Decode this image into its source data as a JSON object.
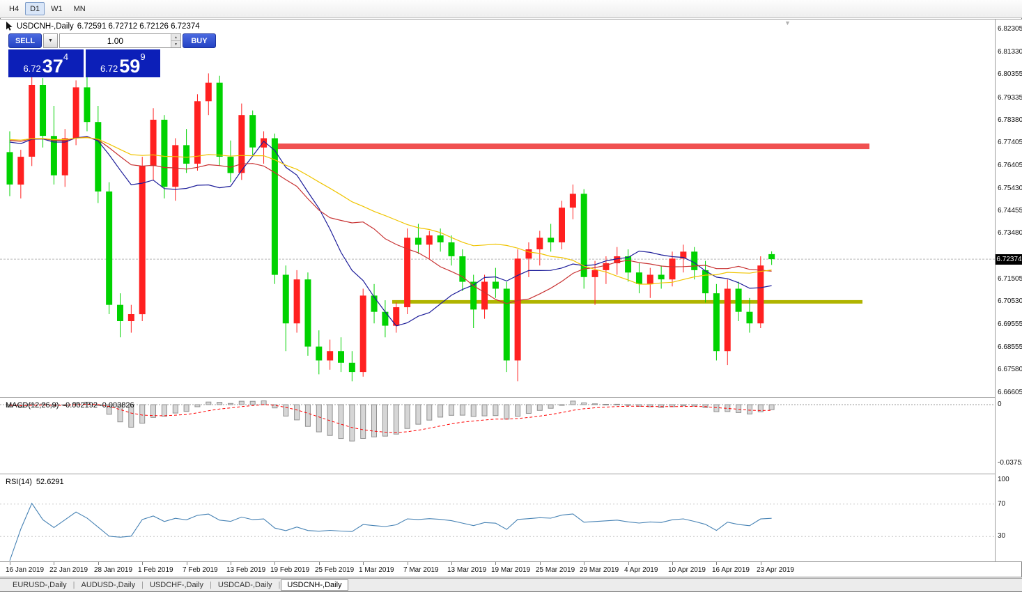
{
  "toolbar": {
    "timeframes": [
      {
        "label": "H4",
        "active": false
      },
      {
        "label": "D1",
        "active": true
      },
      {
        "label": "W1",
        "active": false
      },
      {
        "label": "MN",
        "active": false
      }
    ]
  },
  "chart": {
    "symbol_title": "USDCNH-,Daily",
    "ohlc_text": "6.72591 6.72712 6.72126 6.72374",
    "current_price_label": "6.72374",
    "colors": {
      "bull": "#ff2020",
      "bear": "#00d200",
      "resistance": "#f05050",
      "support": "#b0b400",
      "macd_bar_fill": "#d6d6d6",
      "macd_bar_stroke": "#909090",
      "macd_signal": "#ff0000",
      "rsi": "#4682b4",
      "price_line": "#b8b8b8",
      "badge_bg": "#000000",
      "badge_fg": "#ffffff",
      "button_blue": "#2d50d8",
      "panel_blue": "#0c1fb8"
    }
  },
  "trade": {
    "sell_label": "SELL",
    "buy_label": "BUY",
    "volume": "1.00",
    "sell_price": {
      "prefix": "6.72",
      "big": "37",
      "sup": "4"
    },
    "buy_price": {
      "prefix": "6.72",
      "big": "59",
      "sup": "9"
    }
  },
  "icons": {
    "dropdown": "▼",
    "spin_up": "▲",
    "spin_down": "▼",
    "shift_marker": "▼"
  },
  "chart_data": {
    "type": "candlestick",
    "x_labels": [
      "16 Jan 2019",
      "22 Jan 2019",
      "28 Jan 2019",
      "1 Feb 2019",
      "7 Feb 2019",
      "13 Feb 2019",
      "19 Feb 2019",
      "25 Feb 2019",
      "1 Mar 2019",
      "7 Mar 2019",
      "13 Mar 2019",
      "19 Mar 2019",
      "25 Mar 2019",
      "29 Mar 2019",
      "4 Apr 2019",
      "10 Apr 2019",
      "16 Apr 2019",
      "23 Apr 2019"
    ],
    "x_label_step": 4,
    "price_pane": {
      "ylim": [
        6.6642,
        6.8273
      ],
      "axis_labels": [
        "6.82305",
        "6.81330",
        "6.80355",
        "6.79335",
        "6.78380",
        "6.77405",
        "6.76405",
        "6.75430",
        "6.74455",
        "6.73480",
        "6.71505",
        "6.70530",
        "6.69555",
        "6.68555",
        "6.67580",
        "6.66605"
      ],
      "current_price": 6.72374,
      "resistance_level": 6.7725,
      "support_level": 6.7053,
      "moving_averages": [
        {
          "period": 12,
          "color": "#1c1c99"
        },
        {
          "period": 21,
          "color": "#c83232"
        },
        {
          "period": 34,
          "color": "#f0c400"
        }
      ],
      "candles": [
        [
          6.77,
          6.779,
          6.751,
          6.756
        ],
        [
          6.756,
          6.771,
          6.75,
          6.768
        ],
        [
          6.768,
          6.803,
          6.764,
          6.799
        ],
        [
          6.799,
          6.802,
          6.772,
          6.777
        ],
        [
          6.777,
          6.79,
          6.756,
          6.76
        ],
        [
          6.76,
          6.78,
          6.755,
          6.776
        ],
        [
          6.776,
          6.801,
          6.773,
          6.798
        ],
        [
          6.798,
          6.804,
          6.779,
          6.783
        ],
        [
          6.783,
          6.79,
          6.748,
          6.753
        ],
        [
          6.753,
          6.757,
          6.7,
          6.704
        ],
        [
          6.704,
          6.709,
          6.69,
          6.697
        ],
        [
          6.697,
          6.704,
          6.692,
          6.7
        ],
        [
          6.7,
          6.768,
          6.697,
          6.764
        ],
        [
          6.764,
          6.789,
          6.758,
          6.784
        ],
        [
          6.784,
          6.786,
          6.75,
          6.755
        ],
        [
          6.755,
          6.776,
          6.749,
          6.773
        ],
        [
          6.773,
          6.78,
          6.761,
          6.765
        ],
        [
          6.765,
          6.795,
          6.762,
          6.792
        ],
        [
          6.792,
          6.804,
          6.786,
          6.8
        ],
        [
          6.8,
          6.803,
          6.764,
          6.768
        ],
        [
          6.768,
          6.775,
          6.757,
          6.761
        ],
        [
          6.761,
          6.791,
          6.758,
          6.786
        ],
        [
          6.786,
          6.788,
          6.768,
          6.772
        ],
        [
          6.772,
          6.779,
          6.765,
          6.776
        ],
        [
          6.776,
          6.778,
          6.713,
          6.717
        ],
        [
          6.717,
          6.721,
          6.684,
          6.696
        ],
        [
          6.696,
          6.719,
          6.692,
          6.715
        ],
        [
          6.715,
          6.718,
          6.682,
          6.686
        ],
        [
          6.686,
          6.693,
          6.674,
          6.68
        ],
        [
          6.68,
          6.689,
          6.676,
          6.684
        ],
        [
          6.684,
          6.69,
          6.675,
          6.679
        ],
        [
          6.679,
          6.684,
          6.671,
          6.675
        ],
        [
          6.675,
          6.711,
          6.673,
          6.708
        ],
        [
          6.708,
          6.713,
          6.696,
          6.701
        ],
        [
          6.701,
          6.706,
          6.69,
          6.695
        ],
        [
          6.695,
          6.705,
          6.692,
          6.703
        ],
        [
          6.703,
          6.737,
          6.7,
          6.733
        ],
        [
          6.733,
          6.739,
          6.726,
          6.73
        ],
        [
          6.73,
          6.736,
          6.724,
          6.734
        ],
        [
          6.734,
          6.737,
          6.727,
          6.731
        ],
        [
          6.731,
          6.734,
          6.721,
          6.725
        ],
        [
          6.725,
          6.728,
          6.71,
          6.714
        ],
        [
          6.714,
          6.717,
          6.694,
          6.702
        ],
        [
          6.702,
          6.717,
          6.698,
          6.714
        ],
        [
          6.714,
          6.72,
          6.707,
          6.711
        ],
        [
          6.711,
          6.714,
          6.675,
          6.68
        ],
        [
          6.68,
          6.728,
          6.671,
          6.724
        ],
        [
          6.724,
          6.731,
          6.716,
          6.728
        ],
        [
          6.728,
          6.736,
          6.721,
          6.733
        ],
        [
          6.733,
          6.739,
          6.727,
          6.731
        ],
        [
          6.731,
          6.749,
          6.728,
          6.746
        ],
        [
          6.746,
          6.756,
          6.741,
          6.752
        ],
        [
          6.752,
          6.754,
          6.711,
          6.716
        ],
        [
          6.716,
          6.723,
          6.704,
          6.719
        ],
        [
          6.719,
          6.725,
          6.713,
          6.722
        ],
        [
          6.722,
          6.729,
          6.717,
          6.725
        ],
        [
          6.725,
          6.728,
          6.714,
          6.718
        ],
        [
          6.718,
          6.722,
          6.709,
          6.713
        ],
        [
          6.713,
          6.72,
          6.707,
          6.717
        ],
        [
          6.717,
          6.721,
          6.711,
          6.715
        ],
        [
          6.715,
          6.727,
          6.712,
          6.724
        ],
        [
          6.724,
          6.73,
          6.718,
          6.727
        ],
        [
          6.727,
          6.729,
          6.715,
          6.719
        ],
        [
          6.719,
          6.723,
          6.705,
          6.709
        ],
        [
          6.709,
          6.713,
          6.68,
          6.684
        ],
        [
          6.684,
          6.715,
          6.678,
          6.711
        ],
        [
          6.711,
          6.714,
          6.697,
          6.701
        ],
        [
          6.701,
          6.707,
          6.692,
          6.696
        ],
        [
          6.696,
          6.725,
          6.694,
          6.721
        ],
        [
          6.72591,
          6.72712,
          6.72126,
          6.72374
        ]
      ]
    },
    "macd_pane": {
      "label": "MACD(12,26,9)",
      "values_text": "-0.002192 -0.003826",
      "fast": 12,
      "slow": 26,
      "signal": 9,
      "axis_labels": [
        "0",
        "-0.037529"
      ],
      "ylim": [
        -0.037529,
        0
      ]
    },
    "rsi_pane": {
      "label": "RSI(14)",
      "value_text": "52.6291",
      "period": 14,
      "levels": [
        70,
        30
      ],
      "axis_labels": [
        "100",
        "70",
        "30"
      ]
    }
  },
  "tabs_bar": {
    "separator": "|",
    "tabs": [
      {
        "label": "EURUSD-,Daily",
        "active": false
      },
      {
        "label": "AUDUSD-,Daily",
        "active": false
      },
      {
        "label": "USDCHF-,Daily",
        "active": false
      },
      {
        "label": "USDCAD-,Daily",
        "active": false
      },
      {
        "label": "USDCNH-,Daily",
        "active": true
      }
    ]
  }
}
